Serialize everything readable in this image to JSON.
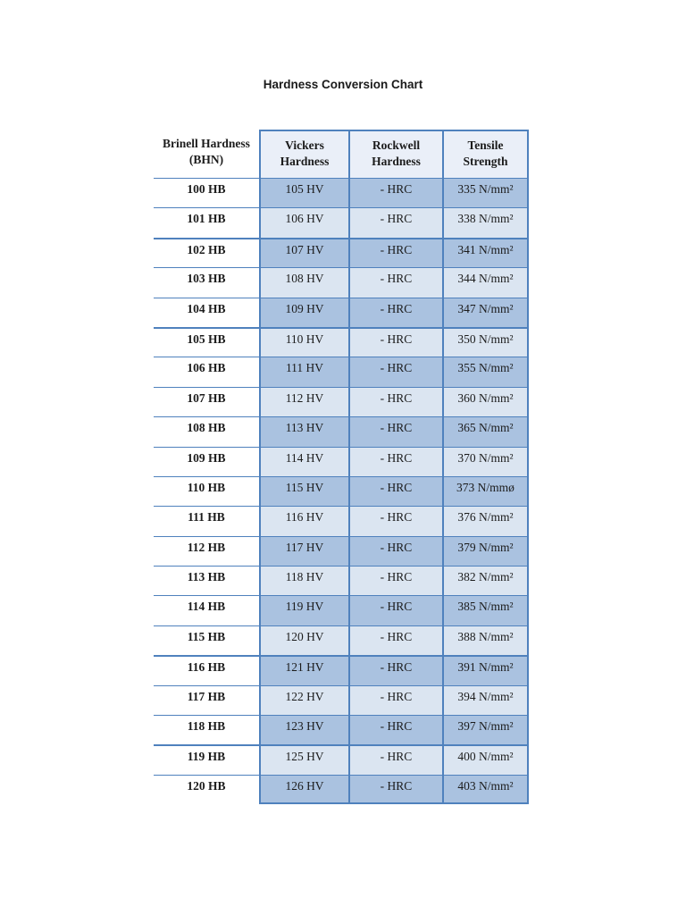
{
  "document": {
    "title": "Hardness Conversion Chart"
  },
  "table": {
    "headers": [
      "Brinell Hardness (BHN)",
      "Vickers Hardness",
      "Rockwell Hardness",
      "Tensile Strength"
    ],
    "rows": [
      {
        "bhn": "100 HB",
        "hv": "105 HV",
        "hrc": "- HRC",
        "tensile": "335 N/mm²"
      },
      {
        "bhn": "101 HB",
        "hv": "106 HV",
        "hrc": "- HRC",
        "tensile": "338 N/mm²"
      },
      {
        "bhn": "102 HB",
        "hv": "107 HV",
        "hrc": "- HRC",
        "tensile": "341 N/mm²"
      },
      {
        "bhn": "103 HB",
        "hv": "108 HV",
        "hrc": "- HRC",
        "tensile": "344 N/mm²"
      },
      {
        "bhn": "104 HB",
        "hv": "109 HV",
        "hrc": "- HRC",
        "tensile": "347 N/mm²"
      },
      {
        "bhn": "105 HB",
        "hv": "110 HV",
        "hrc": "- HRC",
        "tensile": "350 N/mm²"
      },
      {
        "bhn": "106 HB",
        "hv": "111 HV",
        "hrc": "- HRC",
        "tensile": "355 N/mm²"
      },
      {
        "bhn": "107 HB",
        "hv": "112 HV",
        "hrc": "- HRC",
        "tensile": "360 N/mm²"
      },
      {
        "bhn": "108 HB",
        "hv": "113 HV",
        "hrc": "- HRC",
        "tensile": "365 N/mm²"
      },
      {
        "bhn": "109 HB",
        "hv": "114 HV",
        "hrc": "- HRC",
        "tensile": "370 N/mm²"
      },
      {
        "bhn": "110 HB",
        "hv": "115 HV",
        "hrc": "- HRC",
        "tensile": "373 N/mmø"
      },
      {
        "bhn": "111 HB",
        "hv": "116 HV",
        "hrc": "- HRC",
        "tensile": "376 N/mm²"
      },
      {
        "bhn": "112 HB",
        "hv": "117 HV",
        "hrc": "- HRC",
        "tensile": "379 N/mm²"
      },
      {
        "bhn": "113 HB",
        "hv": "118 HV",
        "hrc": "- HRC",
        "tensile": "382 N/mm²"
      },
      {
        "bhn": "114 HB",
        "hv": "119 HV",
        "hrc": "- HRC",
        "tensile": "385 N/mm²"
      },
      {
        "bhn": "115 HB",
        "hv": "120 HV",
        "hrc": "- HRC",
        "tensile": "388 N/mm²"
      },
      {
        "bhn": "116 HB",
        "hv": "121 HV",
        "hrc": "- HRC",
        "tensile": "391 N/mm²"
      },
      {
        "bhn": "117 HB",
        "hv": "122 HV",
        "hrc": "- HRC",
        "tensile": "394 N/mm²"
      },
      {
        "bhn": "118 HB",
        "hv": "123 HV",
        "hrc": "- HRC",
        "tensile": "397 N/mm²"
      },
      {
        "bhn": "119 HB",
        "hv": "125 HV",
        "hrc": "- HRC",
        "tensile": "400 N/mm²"
      },
      {
        "bhn": "120 HB",
        "hv": "126 HV",
        "hrc": "- HRC",
        "tensile": "403 N/mm²"
      }
    ]
  },
  "colors": {
    "table_border": "#4f81bd",
    "row_fill_dark": "#aac2e0",
    "row_fill_light": "#dbe5f1",
    "header_fill": "#eaeff8",
    "text": "#1c1c1c"
  }
}
